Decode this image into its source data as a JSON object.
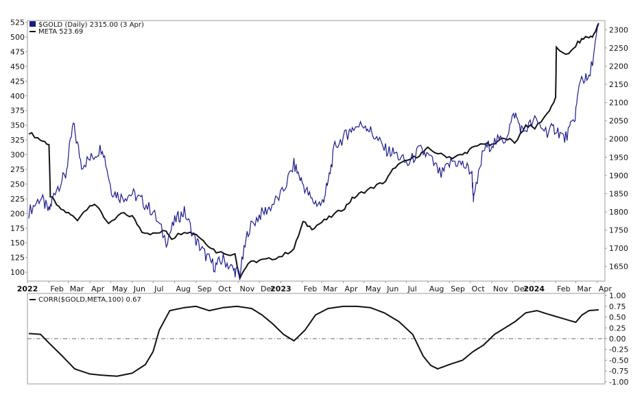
{
  "colors": {
    "gold": "#1a1a8c",
    "meta": "#111111",
    "corr": "#111111",
    "zero_line": "#666666",
    "frame": "#9a9a9a",
    "bg": "#ffffff"
  },
  "legend": {
    "gold_label": "$GOLD (Daily) 2315.00 (3 Apr)",
    "meta_label": "META 523.69",
    "corr_label": "CORR($GOLD,META,100) 0.67"
  },
  "chart_data": [
    {
      "type": "line",
      "title": "$GOLD (Daily) 2315.00 (3 Apr)",
      "x": [
        "2022-01-03",
        "2022-01-20",
        "2022-02-01",
        "2022-02-10",
        "2022-02-25",
        "2022-03-08",
        "2022-03-20",
        "2022-04-05",
        "2022-04-19",
        "2022-05-02",
        "2022-05-16",
        "2022-06-01",
        "2022-06-15",
        "2022-07-01",
        "2022-07-20",
        "2022-08-03",
        "2022-08-15",
        "2022-09-01",
        "2022-09-15",
        "2022-09-28",
        "2022-10-10",
        "2022-10-25",
        "2022-11-03",
        "2022-11-15",
        "2022-12-01",
        "2022-12-15",
        "2023-01-03",
        "2023-01-20",
        "2023-02-01",
        "2023-02-15",
        "2023-03-01",
        "2023-03-09",
        "2023-03-20",
        "2023-04-05",
        "2023-04-14",
        "2023-05-03",
        "2023-05-15",
        "2023-06-01",
        "2023-06-15",
        "2023-07-03",
        "2023-07-20",
        "2023-08-03",
        "2023-08-20",
        "2023-09-05",
        "2023-09-20",
        "2023-10-03",
        "2023-10-06",
        "2023-10-20",
        "2023-11-03",
        "2023-11-20",
        "2023-12-04",
        "2023-12-15",
        "2024-01-02",
        "2024-01-20",
        "2024-02-01",
        "2024-02-14",
        "2024-02-28",
        "2024-03-08",
        "2024-03-20",
        "2024-04-03"
      ],
      "series": [
        {
          "name": "$GOLD",
          "axis": "right",
          "values": [
            1800,
            1840,
            1800,
            1860,
            1900,
            2040,
            1930,
            1950,
            1980,
            1860,
            1840,
            1850,
            1830,
            1800,
            1720,
            1780,
            1800,
            1720,
            1680,
            1650,
            1670,
            1640,
            1630,
            1750,
            1790,
            1810,
            1850,
            1930,
            1880,
            1830,
            1820,
            1870,
            1980,
            2010,
            2030,
            2040,
            2010,
            1970,
            1960,
            1930,
            1970,
            1950,
            1900,
            1940,
            1930,
            1910,
            1830,
            1970,
            1990,
            2000,
            2070,
            2020,
            2050,
            2020,
            2030,
            2000,
            2050,
            2170,
            2160,
            2315
          ]
        }
      ],
      "ylim": [
        1600,
        2320
      ]
    },
    {
      "type": "line",
      "title": "META 523.69",
      "x": [
        "2022-01-03",
        "2022-01-20",
        "2022-02-01",
        "2022-02-03",
        "2022-02-15",
        "2022-03-01",
        "2022-03-14",
        "2022-04-01",
        "2022-04-14",
        "2022-04-28",
        "2022-05-16",
        "2022-06-01",
        "2022-06-15",
        "2022-07-01",
        "2022-07-20",
        "2022-07-28",
        "2022-08-15",
        "2022-09-01",
        "2022-09-15",
        "2022-09-30",
        "2022-10-27",
        "2022-11-03",
        "2022-11-15",
        "2022-12-01",
        "2022-12-15",
        "2023-01-03",
        "2023-01-20",
        "2023-02-02",
        "2023-02-15",
        "2023-03-01",
        "2023-03-15",
        "2023-04-03",
        "2023-04-14",
        "2023-04-27",
        "2023-05-15",
        "2023-06-01",
        "2023-06-15",
        "2023-07-03",
        "2023-07-20",
        "2023-08-01",
        "2023-08-20",
        "2023-09-05",
        "2023-09-20",
        "2023-10-03",
        "2023-10-20",
        "2023-11-01",
        "2023-11-20",
        "2023-12-04",
        "2023-12-20",
        "2024-01-02",
        "2024-01-20",
        "2024-02-01",
        "2024-02-02",
        "2024-02-20",
        "2024-03-04",
        "2024-03-15",
        "2024-03-25",
        "2024-04-03"
      ],
      "series": [
        {
          "name": "META",
          "axis": "left",
          "values": [
            338,
            325,
            318,
            230,
            210,
            200,
            190,
            215,
            210,
            180,
            200,
            195,
            170,
            165,
            170,
            158,
            170,
            165,
            150,
            135,
            130,
            92,
            115,
            120,
            122,
            128,
            140,
            185,
            175,
            185,
            195,
            210,
            225,
            235,
            245,
            255,
            280,
            290,
            300,
            310,
            300,
            295,
            300,
            310,
            320,
            315,
            330,
            320,
            350,
            345,
            370,
            395,
            480,
            470,
            490,
            500,
            500,
            523.69
          ]
        }
      ],
      "ylim": [
        90,
        525
      ]
    },
    {
      "type": "line",
      "title": "CORR($GOLD,META,100) 0.67",
      "x": [
        "2022-01-03",
        "2022-01-20",
        "2022-02-01",
        "2022-02-20",
        "2022-03-10",
        "2022-04-01",
        "2022-04-20",
        "2022-05-10",
        "2022-06-01",
        "2022-06-20",
        "2022-07-01",
        "2022-07-10",
        "2022-07-25",
        "2022-08-15",
        "2022-09-01",
        "2022-09-20",
        "2022-10-10",
        "2022-10-30",
        "2022-11-20",
        "2022-12-05",
        "2022-12-20",
        "2023-01-05",
        "2023-01-20",
        "2023-02-05",
        "2023-02-20",
        "2023-03-10",
        "2023-04-01",
        "2023-04-20",
        "2023-05-10",
        "2023-05-30",
        "2023-06-20",
        "2023-07-10",
        "2023-07-25",
        "2023-08-05",
        "2023-08-15",
        "2023-09-01",
        "2023-09-20",
        "2023-10-05",
        "2023-10-20",
        "2023-11-05",
        "2023-11-20",
        "2023-12-05",
        "2023-12-20",
        "2024-01-05",
        "2024-01-25",
        "2024-02-15",
        "2024-03-01",
        "2024-03-10",
        "2024-03-20",
        "2024-04-03"
      ],
      "series": [
        {
          "name": "CORR",
          "values": [
            0.12,
            0.1,
            -0.1,
            -0.4,
            -0.7,
            -0.82,
            -0.85,
            -0.87,
            -0.8,
            -0.6,
            -0.3,
            0.2,
            0.65,
            0.72,
            0.75,
            0.65,
            0.72,
            0.75,
            0.7,
            0.55,
            0.35,
            0.1,
            -0.05,
            0.2,
            0.55,
            0.7,
            0.75,
            0.75,
            0.72,
            0.6,
            0.4,
            0.1,
            -0.4,
            -0.62,
            -0.7,
            -0.6,
            -0.5,
            -0.3,
            -0.15,
            0.1,
            0.25,
            0.4,
            0.6,
            0.65,
            0.55,
            0.45,
            0.38,
            0.55,
            0.65,
            0.67
          ]
        }
      ],
      "ylim": [
        -1.0,
        1.0
      ],
      "y_ticks": [
        "1.00",
        "0.75",
        "0.50",
        "0.25",
        "0.00",
        "-0.25",
        "-0.50",
        "-0.75",
        "-1.00"
      ],
      "reference_line": 0
    }
  ],
  "axes": {
    "left_ticks": [
      "525",
      "500",
      "475",
      "450",
      "425",
      "400",
      "375",
      "350",
      "325",
      "300",
      "275",
      "250",
      "225",
      "200",
      "175",
      "150",
      "125",
      "100"
    ],
    "right_ticks": [
      "2300",
      "2250",
      "2200",
      "2150",
      "2100",
      "2050",
      "2000",
      "1950",
      "1900",
      "1850",
      "1800",
      "1750",
      "1700",
      "1650"
    ],
    "x_ticks": [
      "2022",
      "Feb",
      "Mar",
      "Apr",
      "May",
      "Jun",
      "Jul",
      "Aug",
      "Sep",
      "Oct",
      "Nov",
      "Dec",
      "2023",
      "Feb",
      "Mar",
      "Apr",
      "May",
      "Jun",
      "Jul",
      "Aug",
      "Sep",
      "Oct",
      "Nov",
      "Dec",
      "2024",
      "Feb",
      "Mar",
      "Apr"
    ],
    "x_tick_dates": [
      "2022-01-01",
      "2022-02-01",
      "2022-03-01",
      "2022-04-01",
      "2022-05-01",
      "2022-06-01",
      "2022-07-01",
      "2022-08-01",
      "2022-09-01",
      "2022-10-01",
      "2022-11-01",
      "2022-12-01",
      "2023-01-01",
      "2023-02-01",
      "2023-03-01",
      "2023-04-01",
      "2023-05-01",
      "2023-06-01",
      "2023-07-01",
      "2023-08-01",
      "2023-09-01",
      "2023-10-01",
      "2023-11-01",
      "2023-12-01",
      "2024-01-01",
      "2024-02-01",
      "2024-03-01",
      "2024-04-01"
    ],
    "x_range": [
      "2022-01-01",
      "2024-04-12"
    ],
    "x_bold": [
      "2022",
      "2023",
      "2024"
    ]
  }
}
